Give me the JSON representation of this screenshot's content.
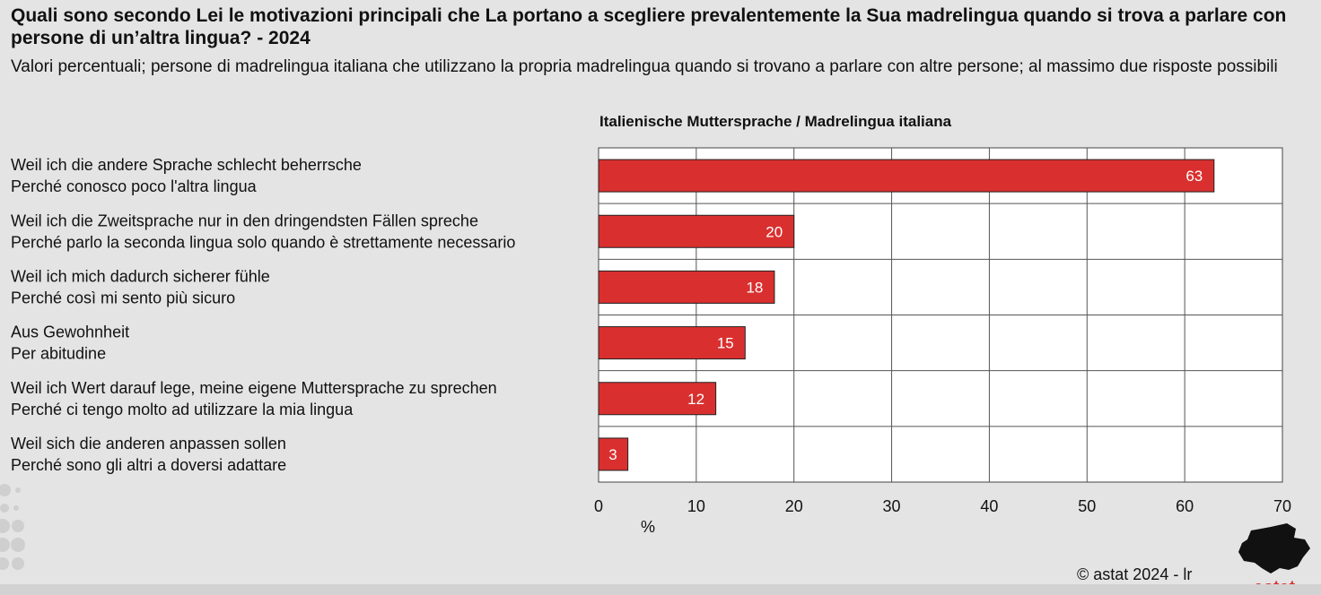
{
  "header": {
    "title": "Quali sono secondo Lei le motivazioni principali che La portano a scegliere prevalentemente la Sua madrelingua quando si trova a parlare con persone di un’altra lingua? - 2024",
    "subtitle": "Valori percentuali; persone di madrelingua italiana che utilizzano la propria madrelingua quando si trovano a parlare con altre persone; al massimo due risposte possibili"
  },
  "chart_data": {
    "type": "bar",
    "orientation": "horizontal",
    "title": "Italienische Muttersprache / Madrelingua italiana",
    "categories": [
      [
        "Weil ich die andere Sprache schlecht beherrsche",
        "Perché conosco poco l'altra lingua"
      ],
      [
        "Weil ich die Zweitsprache nur in den dringendsten Fällen spreche",
        "Perché parlo la seconda lingua solo quando è strettamente necessario"
      ],
      [
        "Weil ich mich dadurch sicherer fühle",
        "Perché così mi sento più sicuro"
      ],
      [
        "Aus Gewohnheit",
        "Per abitudine"
      ],
      [
        "Weil ich Wert darauf lege, meine eigene Muttersprache zu sprechen",
        "Perché ci tengo molto ad utilizzare la mia lingua"
      ],
      [
        "Weil sich die anderen anpassen sollen",
        "Perché sono gli altri a doversi adattare"
      ]
    ],
    "values": [
      63,
      20,
      18,
      15,
      12,
      3
    ],
    "xlim": [
      0,
      70
    ],
    "xticks": [
      0,
      10,
      20,
      30,
      40,
      50,
      60,
      70
    ],
    "xlabel": "%",
    "grid": true,
    "bar_color": "#d9302f",
    "data_labels": true
  },
  "footer": {
    "copyright": "© astat 2024 - lr"
  },
  "logo": {
    "text": "astat",
    "color": "#d9302f"
  }
}
